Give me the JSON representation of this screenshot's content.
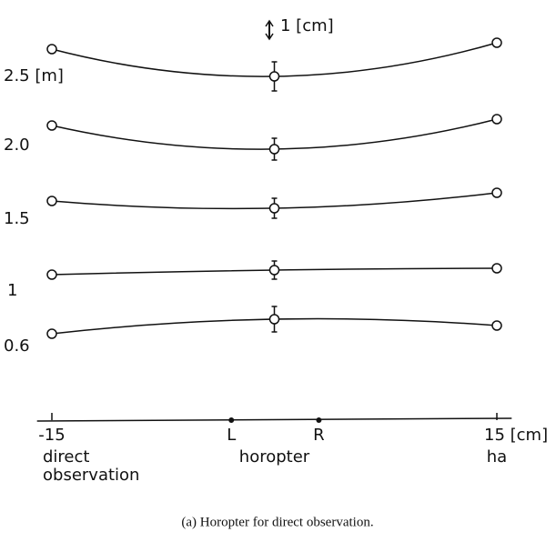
{
  "chart_data": {
    "type": "line",
    "caption": "(a) Horopter for direct observation.",
    "x": [
      -15,
      0,
      15
    ],
    "xlim": [
      -16,
      16
    ],
    "xticks": [
      -15,
      {
        "value": -2.9,
        "label": "L"
      },
      {
        "value": 3,
        "label": "R"
      },
      {
        "value": 15,
        "label": "15 [cm]"
      }
    ],
    "ylim": [
      0,
      23
    ],
    "scale_bar": {
      "label": "1 [cm]",
      "length": 1
    },
    "color": "#111111",
    "x_annotations": [
      {
        "x": -15,
        "lines": [
          "direct",
          "observation"
        ]
      },
      {
        "x": 0,
        "lines": [
          "horopter"
        ]
      },
      {
        "x": 15,
        "lines": [
          "ha"
        ]
      }
    ],
    "series": [
      {
        "name": "2.5 [m]",
        "values": [
          20.4,
          18.9,
          20.75
        ],
        "errors": [
          null,
          0.8,
          null
        ]
      },
      {
        "name": "2.0",
        "values": [
          16.2,
          14.9,
          16.55
        ],
        "errors": [
          null,
          0.6,
          null
        ]
      },
      {
        "name": "1.5",
        "values": [
          12.05,
          11.65,
          12.5
        ],
        "errors": [
          null,
          0.55,
          null
        ]
      },
      {
        "name": "1",
        "values": [
          8.0,
          8.25,
          8.35
        ],
        "errors": [
          null,
          0.5,
          null
        ]
      },
      {
        "name": "0.6",
        "values": [
          4.75,
          5.55,
          5.2
        ],
        "errors": [
          null,
          0.7,
          null
        ]
      }
    ]
  }
}
